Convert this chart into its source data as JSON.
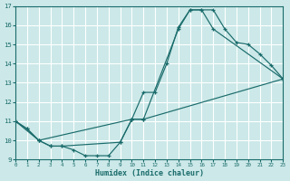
{
  "bg_color": "#cce8e8",
  "grid_color": "#ffffff",
  "line_color": "#1a6b6b",
  "xlabel": "Humidex (Indice chaleur)",
  "ylim": [
    9,
    17
  ],
  "xlim": [
    0,
    23
  ],
  "yticks": [
    9,
    10,
    11,
    12,
    13,
    14,
    15,
    16,
    17
  ],
  "xticks": [
    0,
    1,
    2,
    3,
    4,
    5,
    6,
    7,
    8,
    9,
    10,
    11,
    12,
    13,
    14,
    15,
    16,
    17,
    18,
    19,
    20,
    21,
    22,
    23
  ],
  "line1_x": [
    0,
    1,
    2,
    3,
    4,
    5,
    6,
    7,
    8,
    9,
    10,
    11,
    12,
    13,
    14,
    15,
    16,
    17,
    18,
    19,
    20,
    21,
    22,
    23
  ],
  "line1_y": [
    11.0,
    10.6,
    10.0,
    9.7,
    9.7,
    9.5,
    9.2,
    9.2,
    9.2,
    9.9,
    11.1,
    12.5,
    12.5,
    14.0,
    15.9,
    16.8,
    16.8,
    16.8,
    15.8,
    15.1,
    15.0,
    14.5,
    13.9,
    13.2
  ],
  "line2_x": [
    0,
    2,
    10,
    11,
    14,
    15,
    16,
    17,
    23
  ],
  "line2_y": [
    11.0,
    10.0,
    11.1,
    11.1,
    15.8,
    16.8,
    16.8,
    15.8,
    13.2
  ],
  "line3_x": [
    0,
    1,
    2,
    3,
    4,
    9,
    10,
    11,
    23
  ],
  "line3_y": [
    11.0,
    10.6,
    10.0,
    9.7,
    9.7,
    9.9,
    11.1,
    11.1,
    13.2
  ]
}
